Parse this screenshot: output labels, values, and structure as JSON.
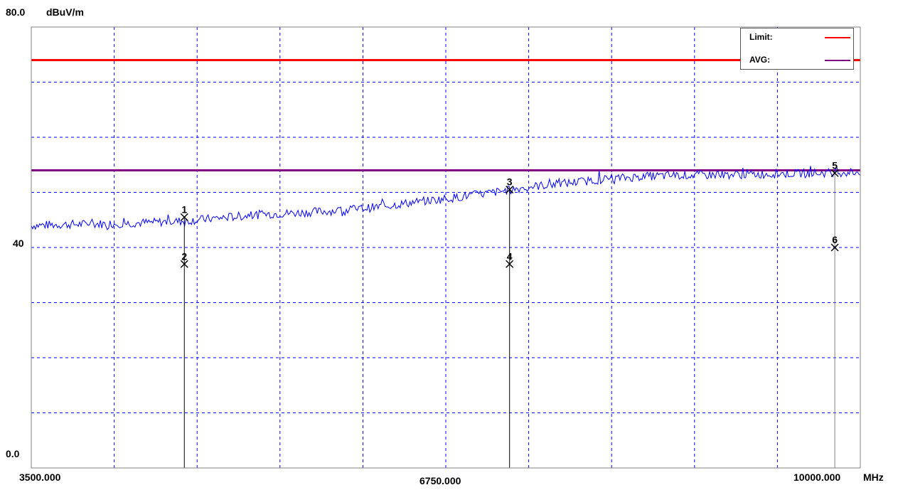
{
  "chart_data": {
    "type": "line",
    "title": "",
    "ylabel": "dBuV/m",
    "xlabel": "MHz",
    "xlim": [
      3500,
      10000
    ],
    "ylim": [
      0,
      80
    ],
    "x_tick_labels": [
      "3500.000",
      "6750.000",
      "10000.000"
    ],
    "y_tick_labels": [
      "80.0",
      "40",
      "0.0"
    ],
    "grid": "dashed",
    "legend_position": "top-right",
    "legend": [
      {
        "label": "Limit:",
        "color": "#ff0000"
      },
      {
        "label": "AVG:",
        "color": "#800080"
      }
    ],
    "limit_lines": [
      {
        "name": "Limit",
        "value": 74,
        "color": "#ff0000"
      },
      {
        "name": "AVG",
        "value": 54,
        "color": "#800080"
      }
    ],
    "series": [
      {
        "color": "#0000ff",
        "x": [
          3500,
          3800,
          4100,
          4400,
          4700,
          5000,
          5300,
          5600,
          5900,
          6200,
          6500,
          6800,
          7100,
          7400,
          7700,
          8000,
          8300,
          8600,
          8900,
          9200,
          9500,
          9800,
          10000
        ],
        "y": [
          44.0,
          44.2,
          44.3,
          44.5,
          44.8,
          45.4,
          46.0,
          46.3,
          46.7,
          47.3,
          48.2,
          49.0,
          49.9,
          51.0,
          51.7,
          52.4,
          52.9,
          53.1,
          53.2,
          53.3,
          53.4,
          53.6,
          53.7
        ]
      }
    ],
    "markers": [
      {
        "label": "1",
        "x": 4700,
        "y": 45.5
      },
      {
        "label": "2",
        "x": 4700,
        "y": 37.0
      },
      {
        "label": "3",
        "x": 7250,
        "y": 50.5
      },
      {
        "label": "4",
        "x": 7250,
        "y": 37.0
      },
      {
        "label": "5",
        "x": 9800,
        "y": 53.5
      },
      {
        "label": "6",
        "x": 9800,
        "y": 40.0
      }
    ]
  }
}
